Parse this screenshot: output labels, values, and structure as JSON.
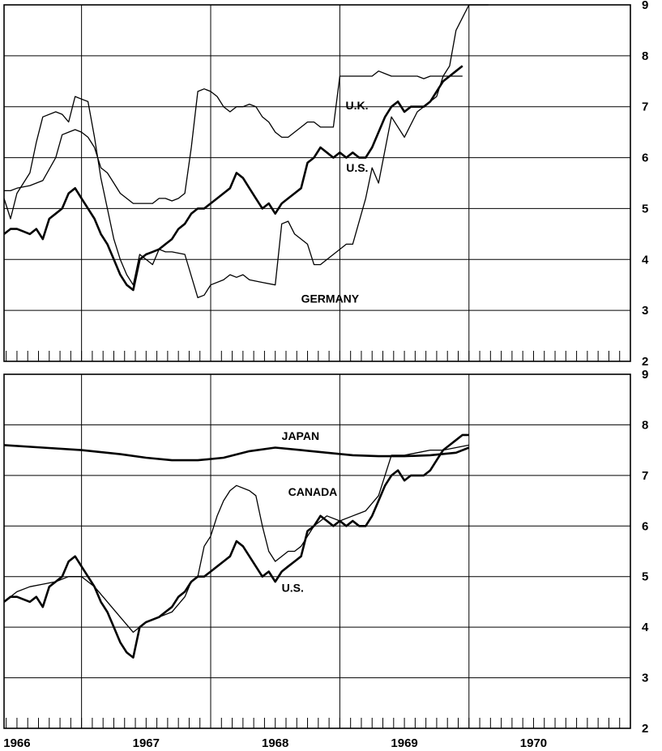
{
  "chart_data": [
    {
      "type": "line",
      "panel": "top",
      "xlim": [
        1965.9,
        1970.75
      ],
      "ylim": [
        2,
        9
      ],
      "yticks": [
        "2",
        "3",
        "4",
        "5",
        "6",
        "7",
        "8",
        "9"
      ],
      "grid": true,
      "series": [
        {
          "name": "U.K.",
          "weight": "thin",
          "x": [
            1965.9,
            1965.95,
            1966.0,
            1966.05,
            1966.1,
            1966.15,
            1966.2,
            1966.3,
            1966.35,
            1966.4,
            1966.45,
            1966.5,
            1966.55,
            1966.6,
            1966.65,
            1966.7,
            1966.75,
            1966.8,
            1966.85,
            1966.9,
            1966.95,
            1967.0,
            1967.05,
            1967.1,
            1967.15,
            1967.2,
            1967.3,
            1967.4,
            1967.45,
            1967.5,
            1967.6,
            1967.65,
            1967.7,
            1967.75,
            1967.8,
            1967.9,
            1968.0,
            1968.05,
            1968.1,
            1968.15,
            1968.2,
            1968.25,
            1968.3,
            1968.35,
            1968.4,
            1968.5,
            1968.55,
            1968.6,
            1968.7,
            1968.75,
            1968.8,
            1968.9,
            1969.0,
            1969.1,
            1969.2,
            1969.25,
            1969.3,
            1969.35,
            1969.4,
            1969.5,
            1969.55,
            1969.6,
            1969.65
          ],
          "y": [
            5.2,
            4.8,
            5.3,
            5.5,
            5.7,
            6.3,
            6.8,
            6.9,
            6.85,
            6.7,
            7.2,
            7.15,
            7.1,
            6.4,
            5.6,
            5.0,
            4.4,
            4.0,
            3.7,
            3.5,
            4.1,
            4.0,
            3.9,
            4.2,
            4.15,
            4.15,
            4.1,
            3.25,
            3.3,
            3.5,
            3.6,
            3.7,
            3.65,
            3.7,
            3.6,
            3.55,
            3.5,
            4.7,
            4.75,
            4.5,
            4.4,
            4.3,
            3.9,
            3.9,
            4.0,
            4.2,
            4.3,
            4.3,
            5.2,
            5.8,
            5.5,
            6.8,
            6.4,
            6.9,
            7.1,
            7.2,
            7.6,
            7.8,
            8.5,
            9.0,
            9.0,
            9.0,
            9.0
          ]
        },
        {
          "name": "U.S.",
          "weight": "thick",
          "x": [
            1965.9,
            1965.95,
            1966.0,
            1966.05,
            1966.1,
            1966.15,
            1966.2,
            1966.25,
            1966.3,
            1966.35,
            1966.4,
            1966.45,
            1966.5,
            1966.55,
            1966.6,
            1966.65,
            1966.7,
            1966.75,
            1966.8,
            1966.85,
            1966.9,
            1966.95,
            1967.0,
            1967.05,
            1967.1,
            1967.15,
            1967.2,
            1967.25,
            1967.3,
            1967.35,
            1967.4,
            1967.45,
            1967.5,
            1967.55,
            1967.6,
            1967.65,
            1967.7,
            1967.75,
            1967.8,
            1967.85,
            1967.9,
            1967.95,
            1968.0,
            1968.05,
            1968.1,
            1968.15,
            1968.2,
            1968.25,
            1968.3,
            1968.35,
            1968.4,
            1968.45,
            1968.5,
            1968.55,
            1968.6,
            1968.65,
            1968.7,
            1968.75,
            1968.8,
            1968.85,
            1968.9,
            1968.95,
            1969.0,
            1969.05,
            1969.1,
            1969.15,
            1969.2,
            1969.25,
            1969.3,
            1969.35,
            1969.4,
            1969.45
          ],
          "y": [
            4.5,
            4.6,
            4.6,
            4.55,
            4.5,
            4.6,
            4.4,
            4.8,
            4.9,
            5.0,
            5.3,
            5.4,
            5.2,
            5.0,
            4.8,
            4.5,
            4.3,
            4.0,
            3.7,
            3.5,
            3.4,
            4.0,
            4.1,
            4.15,
            4.2,
            4.3,
            4.4,
            4.6,
            4.7,
            4.9,
            5.0,
            5.0,
            5.1,
            5.2,
            5.3,
            5.4,
            5.7,
            5.6,
            5.4,
            5.2,
            5.0,
            5.1,
            4.9,
            5.1,
            5.2,
            5.3,
            5.4,
            5.9,
            6.0,
            6.2,
            6.1,
            6.0,
            6.1,
            6.0,
            6.1,
            6.0,
            6.0,
            6.2,
            6.5,
            6.8,
            7.0,
            7.1,
            6.9,
            7.0,
            7.0,
            7.0,
            7.1,
            7.3,
            7.5,
            7.6,
            7.7,
            7.8
          ]
        },
        {
          "name": "GERMANY",
          "weight": "thin",
          "x": [
            1965.9,
            1965.95,
            1966.0,
            1966.1,
            1966.15,
            1966.2,
            1966.3,
            1966.35,
            1966.4,
            1966.45,
            1966.5,
            1966.55,
            1966.6,
            1966.65,
            1966.7,
            1966.75,
            1966.8,
            1966.85,
            1966.9,
            1966.95,
            1967.0,
            1967.05,
            1967.1,
            1967.15,
            1967.2,
            1967.25,
            1967.3,
            1967.35,
            1967.4,
            1967.45,
            1967.5,
            1967.55,
            1967.6,
            1967.65,
            1967.7,
            1967.75,
            1967.8,
            1967.85,
            1967.9,
            1967.95,
            1968.0,
            1968.05,
            1968.1,
            1968.15,
            1968.2,
            1968.25,
            1968.3,
            1968.35,
            1968.4,
            1968.45,
            1968.5,
            1968.55,
            1968.6,
            1968.65,
            1968.7,
            1968.75,
            1968.8,
            1968.85,
            1968.9,
            1968.95,
            1969.0,
            1969.05,
            1969.1,
            1969.15,
            1969.2,
            1969.25,
            1969.3,
            1969.35,
            1969.4,
            1969.45
          ],
          "y": [
            5.35,
            5.35,
            5.4,
            5.45,
            5.5,
            5.55,
            6.0,
            6.45,
            6.5,
            6.55,
            6.5,
            6.4,
            6.2,
            5.8,
            5.7,
            5.5,
            5.3,
            5.2,
            5.1,
            5.1,
            5.1,
            5.1,
            5.2,
            5.2,
            5.15,
            5.2,
            5.3,
            6.2,
            7.3,
            7.35,
            7.3,
            7.2,
            7.0,
            6.9,
            7.0,
            7.0,
            7.05,
            7.0,
            6.8,
            6.7,
            6.5,
            6.4,
            6.4,
            6.5,
            6.6,
            6.7,
            6.7,
            6.6,
            6.6,
            6.6,
            7.6,
            7.6,
            7.6,
            7.6,
            7.6,
            7.6,
            7.7,
            7.65,
            7.6,
            7.6,
            7.6,
            7.6,
            7.6,
            7.55,
            7.6,
            7.6,
            7.6,
            7.6,
            7.6,
            7.6
          ]
        }
      ]
    },
    {
      "type": "line",
      "panel": "bottom",
      "xlim": [
        1965.9,
        1970.75
      ],
      "ylim": [
        2,
        9
      ],
      "yticks": [
        "2",
        "3",
        "4",
        "5",
        "6",
        "7",
        "8",
        "9"
      ],
      "xticklabels": [
        "1966",
        "1967",
        "1968",
        "1969",
        "1970"
      ],
      "xtickpositions": [
        1966.0,
        1967.0,
        1968.0,
        1969.0,
        1970.0
      ],
      "grid": true,
      "series": [
        {
          "name": "JAPAN",
          "weight": "thick",
          "x": [
            1965.9,
            1966.2,
            1966.5,
            1966.8,
            1967.0,
            1967.2,
            1967.4,
            1967.6,
            1967.8,
            1968.0,
            1968.2,
            1968.4,
            1968.6,
            1968.8,
            1969.0,
            1969.2,
            1969.4,
            1969.5
          ],
          "y": [
            7.6,
            7.55,
            7.5,
            7.42,
            7.35,
            7.3,
            7.3,
            7.35,
            7.48,
            7.55,
            7.5,
            7.45,
            7.4,
            7.38,
            7.38,
            7.4,
            7.45,
            7.55
          ]
        },
        {
          "name": "CANADA",
          "weight": "thin",
          "x": [
            1965.9,
            1966.0,
            1966.1,
            1966.2,
            1966.3,
            1966.4,
            1966.5,
            1966.6,
            1966.7,
            1966.8,
            1966.9,
            1967.0,
            1967.1,
            1967.2,
            1967.3,
            1967.35,
            1967.4,
            1967.45,
            1967.5,
            1967.55,
            1967.6,
            1967.65,
            1967.7,
            1967.8,
            1967.85,
            1967.9,
            1967.95,
            1968.0,
            1968.05,
            1968.1,
            1968.15,
            1968.2,
            1968.3,
            1968.4,
            1968.5,
            1968.6,
            1968.7,
            1968.8,
            1968.9,
            1969.0,
            1969.1,
            1969.2,
            1969.3,
            1969.4,
            1969.5
          ],
          "y": [
            4.5,
            4.7,
            4.8,
            4.85,
            4.9,
            5.0,
            5.0,
            4.8,
            4.5,
            4.2,
            3.9,
            4.1,
            4.2,
            4.3,
            4.6,
            4.9,
            5.0,
            5.6,
            5.8,
            6.2,
            6.5,
            6.7,
            6.8,
            6.7,
            6.6,
            6.0,
            5.5,
            5.3,
            5.4,
            5.5,
            5.5,
            5.6,
            6.0,
            6.2,
            6.1,
            6.2,
            6.3,
            6.6,
            7.4,
            7.4,
            7.45,
            7.5,
            7.5,
            7.55,
            7.6
          ]
        },
        {
          "name": "U.S.",
          "weight": "thick",
          "x": [
            1965.9,
            1965.95,
            1966.0,
            1966.05,
            1966.1,
            1966.15,
            1966.2,
            1966.25,
            1966.3,
            1966.35,
            1966.4,
            1966.45,
            1966.5,
            1966.55,
            1966.6,
            1966.65,
            1966.7,
            1966.75,
            1966.8,
            1966.85,
            1966.9,
            1966.95,
            1967.0,
            1967.05,
            1967.1,
            1967.15,
            1967.2,
            1967.25,
            1967.3,
            1967.35,
            1967.4,
            1967.45,
            1967.5,
            1967.55,
            1967.6,
            1967.65,
            1967.7,
            1967.75,
            1967.8,
            1967.85,
            1967.9,
            1967.95,
            1968.0,
            1968.05,
            1968.1,
            1968.15,
            1968.2,
            1968.25,
            1968.3,
            1968.35,
            1968.4,
            1968.45,
            1968.5,
            1968.55,
            1968.6,
            1968.65,
            1968.7,
            1968.75,
            1968.8,
            1968.85,
            1968.9,
            1968.95,
            1969.0,
            1969.05,
            1969.1,
            1969.15,
            1969.2,
            1969.25,
            1969.3,
            1969.35,
            1969.4,
            1969.45,
            1969.5
          ],
          "y": [
            4.5,
            4.6,
            4.6,
            4.55,
            4.5,
            4.6,
            4.4,
            4.8,
            4.9,
            5.0,
            5.3,
            5.4,
            5.2,
            5.0,
            4.8,
            4.5,
            4.3,
            4.0,
            3.7,
            3.5,
            3.4,
            4.0,
            4.1,
            4.15,
            4.2,
            4.3,
            4.4,
            4.6,
            4.7,
            4.9,
            5.0,
            5.0,
            5.1,
            5.2,
            5.3,
            5.4,
            5.7,
            5.6,
            5.4,
            5.2,
            5.0,
            5.1,
            4.9,
            5.1,
            5.2,
            5.3,
            5.4,
            5.9,
            6.0,
            6.2,
            6.1,
            6.0,
            6.1,
            6.0,
            6.1,
            6.0,
            6.0,
            6.2,
            6.5,
            6.8,
            7.0,
            7.1,
            6.9,
            7.0,
            7.0,
            7.0,
            7.1,
            7.3,
            7.5,
            7.6,
            7.7,
            7.8,
            7.8
          ]
        }
      ]
    }
  ]
}
